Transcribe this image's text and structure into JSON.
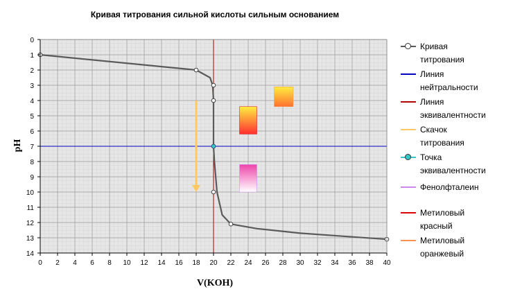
{
  "chart_data": {
    "type": "line",
    "title": "Кривая титрования сильной кислоты сильным основанием",
    "xlabel": "V(KOH)",
    "ylabel": "pH",
    "xlim": [
      0,
      40
    ],
    "ylim": [
      0,
      14
    ],
    "y_inverted": true,
    "grid": true,
    "legend_position": "right",
    "x_ticks": [
      "0",
      "2",
      "4",
      "6",
      "8",
      "10",
      "12",
      "14",
      "16",
      "18",
      "20",
      "22",
      "24",
      "26",
      "28",
      "30",
      "32",
      "34",
      "36",
      "38",
      "40"
    ],
    "y_ticks": [
      "0",
      "1",
      "2",
      "3",
      "4",
      "5",
      "6",
      "7",
      "8",
      "9",
      "10",
      "11",
      "12",
      "13",
      "14"
    ],
    "series": [
      {
        "name": "Кривая титрования",
        "color": "#5a5a5a",
        "marker": "circle",
        "x": [
          0,
          18,
          19.6,
          19.9,
          20,
          20,
          20,
          20,
          20.1,
          20.4,
          21,
          22,
          25,
          30,
          35,
          40
        ],
        "y": [
          1,
          2,
          2.5,
          3,
          4,
          5,
          6,
          7,
          8,
          10,
          11.5,
          12.1,
          12.4,
          12.7,
          12.9,
          13.1
        ],
        "marker_points": [
          [
            0,
            1
          ],
          [
            18,
            2
          ],
          [
            20,
            3
          ],
          [
            20,
            4
          ],
          [
            20,
            10
          ],
          [
            22,
            12.1
          ],
          [
            40,
            13.1
          ]
        ]
      },
      {
        "name": "Линия нейтральности",
        "color": "#0000c0",
        "y_value": 7
      },
      {
        "name": "Линия эквивалентности",
        "color": "#b00000",
        "x_value": 20
      },
      {
        "name": "Скачок титрования",
        "color": "#ffc860",
        "x_value": 18,
        "y_range": [
          4,
          10
        ]
      },
      {
        "name": "Точка эквивалентности",
        "color": "#30c8c8",
        "point": [
          20,
          7
        ]
      },
      {
        "name": "Фенолфталеин",
        "color": "#cc88ee",
        "x_range": [
          23,
          25
        ],
        "y_range": [
          8.2,
          10
        ],
        "gradient": [
          "#ffffff",
          "#ee44aa"
        ]
      },
      {
        "name": "Метиловый красный",
        "color": "#e00000",
        "x_range": [
          23,
          25
        ],
        "y_range": [
          4.4,
          6.2
        ],
        "gradient": [
          "#ff3030",
          "#ffee40"
        ]
      },
      {
        "name": "Метиловый оранжевый",
        "color": "#ff9050",
        "x_range": [
          27,
          29.2
        ],
        "y_range": [
          3.1,
          4.4
        ],
        "gradient": [
          "#ff7030",
          "#ffee40"
        ]
      }
    ]
  }
}
